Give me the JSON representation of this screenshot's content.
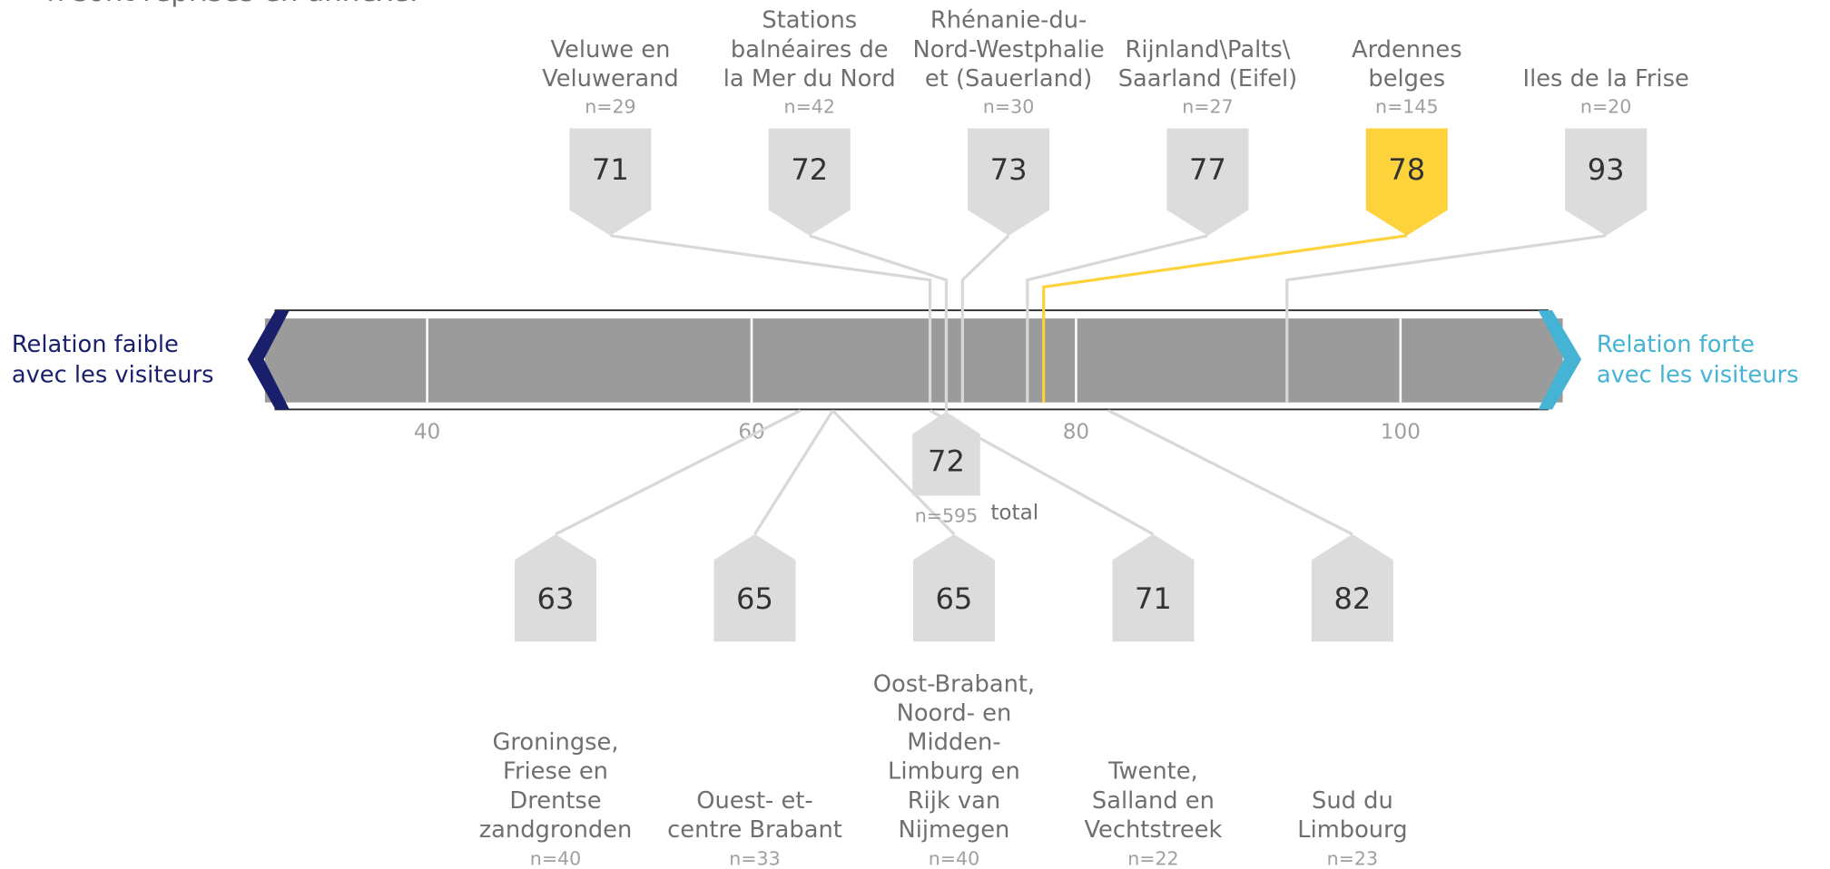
{
  "chart_data": {
    "type": "scale",
    "note": "n sont reprises en annexe.",
    "left_label": [
      "Relation faible",
      "avec les visiteurs"
    ],
    "right_label": [
      "Relation forte",
      "avec les visiteurs"
    ],
    "xlim": [
      30,
      110
    ],
    "xticks": [
      40,
      60,
      80,
      100
    ],
    "colors": {
      "bar": "#9b9b9b",
      "box": "#dcdcdc",
      "highlight": "#fdd23a",
      "left": "#1a1f6b",
      "right": "#45b3d3"
    },
    "top": [
      {
        "name": [
          "Veluwe en",
          "Veluwerand"
        ],
        "n": "n=29",
        "value": 71
      },
      {
        "name": [
          "Stations",
          "balnéaires de",
          "la Mer du Nord"
        ],
        "n": "n=42",
        "value": 72
      },
      {
        "name": [
          "Rhénanie-du-",
          "Nord-Westphalie",
          "et (Sauerland)"
        ],
        "n": "n=30",
        "value": 73
      },
      {
        "name": [
          "Rijnland\\Palts\\",
          "Saarland (Eifel)"
        ],
        "n": "n=27",
        "value": 77
      },
      {
        "name": [
          "Ardennes",
          "belges"
        ],
        "n": "n=145",
        "value": 78,
        "highlight": true
      },
      {
        "name": [
          "Iles de la Frise"
        ],
        "n": "n=20",
        "value": 93
      }
    ],
    "bottom": [
      {
        "name": [
          "Groningse,",
          "Friese en",
          "Drentse",
          "zandgronden"
        ],
        "n": "n=40",
        "value": 63
      },
      {
        "name": [
          "Ouest- et-",
          "centre Brabant"
        ],
        "n": "n=33",
        "value": 65
      },
      {
        "name": [
          "Oost-Brabant,",
          "Noord- en",
          "Midden-",
          "Limburg en",
          "Rijk van",
          "Nijmegen"
        ],
        "n": "n=40",
        "value": 65
      },
      {
        "name": [
          "Twente,",
          "Salland en",
          "Vechtstreek"
        ],
        "n": "n=22",
        "value": 71
      },
      {
        "name": [
          "Sud du",
          "Limbourg"
        ],
        "n": "n=23",
        "value": 82
      }
    ],
    "total": {
      "label": "total",
      "n": "n=595",
      "value": 72
    }
  }
}
